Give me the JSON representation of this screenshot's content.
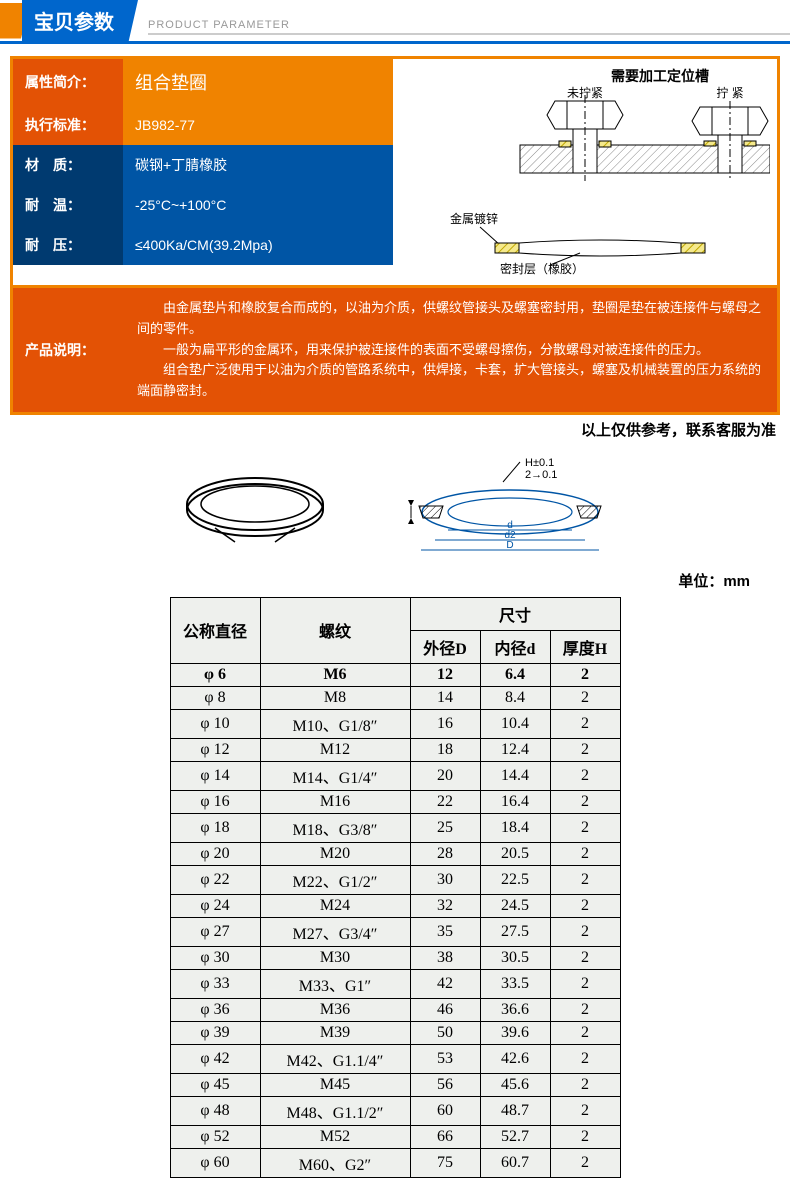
{
  "header": {
    "title": "宝贝参数",
    "subtitle": "PRODUCT PARAMETER"
  },
  "spec": {
    "attr_label": "属性简介：",
    "attr_value": "组合垫圈",
    "std_label": "执行标准：",
    "std_value": "JB982-77",
    "mat_label": "材　质：",
    "mat_value": "碳钢+丁腈橡胶",
    "temp_label": "耐　温：",
    "temp_value": "-25°C~+100°C",
    "press_label": "耐　压：",
    "press_value": "≤400Ka/CM(39.2Mpa)",
    "desc_label": "产品说明：",
    "desc_p1": "由金属垫片和橡胶复合而成的，以油为介质，供螺纹管接头及螺塞密封用，垫圈是垫在被连接件与螺母之间的零件。",
    "desc_p2": "一般为扁平形的金属环，用来保护被连接件的表面不受螺母擦伤，分散螺母对被连接件的压力。",
    "desc_p3": "组合垫广泛使用于以油为介质的管路系统中，供焊接，卡套，扩大管接头，螺塞及机械装置的压力系统的端面静密封。"
  },
  "diagram": {
    "top_title": "需要加工定位槽",
    "left_lbl": "未拧紧",
    "right_lbl": "拧 紧",
    "metal_lbl": "金属镀锌",
    "seal_lbl": "密封层（橡胶）",
    "dim_h": "H±0.1",
    "dim_2": "2→0.1",
    "dim_d": "d",
    "dim_d2": "d2",
    "dim_D": "D"
  },
  "note": "以上仅供参考，联系客服为准",
  "unit": "单位：mm",
  "dim_table": {
    "h_diam": "公称直径",
    "h_thread": "螺纹",
    "h_size": "尺寸",
    "h_D": "外径D",
    "h_d": "内径d",
    "h_H": "厚度H",
    "rows": [
      {
        "diam": "φ 6",
        "thread": "M6",
        "D": "12",
        "d": "6.4",
        "H": "2"
      },
      {
        "diam": "φ 8",
        "thread": "M8",
        "D": "14",
        "d": "8.4",
        "H": "2"
      },
      {
        "diam": "φ 10",
        "thread": "M10、G1/8″",
        "D": "16",
        "d": "10.4",
        "H": "2"
      },
      {
        "diam": "φ 12",
        "thread": "M12",
        "D": "18",
        "d": "12.4",
        "H": "2"
      },
      {
        "diam": "φ 14",
        "thread": "M14、G1/4″",
        "D": "20",
        "d": "14.4",
        "H": "2"
      },
      {
        "diam": "φ 16",
        "thread": "M16",
        "D": "22",
        "d": "16.4",
        "H": "2"
      },
      {
        "diam": "φ 18",
        "thread": "M18、G3/8″",
        "D": "25",
        "d": "18.4",
        "H": "2"
      },
      {
        "diam": "φ 20",
        "thread": "M20",
        "D": "28",
        "d": "20.5",
        "H": "2"
      },
      {
        "diam": "φ 22",
        "thread": "M22、G1/2″",
        "D": "30",
        "d": "22.5",
        "H": "2"
      },
      {
        "diam": "φ 24",
        "thread": "M24",
        "D": "32",
        "d": "24.5",
        "H": "2"
      },
      {
        "diam": "φ 27",
        "thread": "M27、G3/4″",
        "D": "35",
        "d": "27.5",
        "H": "2"
      },
      {
        "diam": "φ 30",
        "thread": "M30",
        "D": "38",
        "d": "30.5",
        "H": "2"
      },
      {
        "diam": "φ 33",
        "thread": "M33、G1″",
        "D": "42",
        "d": "33.5",
        "H": "2"
      },
      {
        "diam": "φ 36",
        "thread": "M36",
        "D": "46",
        "d": "36.6",
        "H": "2"
      },
      {
        "diam": "φ 39",
        "thread": "M39",
        "D": "50",
        "d": "39.6",
        "H": "2"
      },
      {
        "diam": "φ 42",
        "thread": "M42、G1.1/4″",
        "D": "53",
        "d": "42.6",
        "H": "2"
      },
      {
        "diam": "φ 45",
        "thread": "M45",
        "D": "56",
        "d": "45.6",
        "H": "2"
      },
      {
        "diam": "φ 48",
        "thread": "M48、G1.1/2″",
        "D": "60",
        "d": "48.7",
        "H": "2"
      },
      {
        "diam": "φ 52",
        "thread": "M52",
        "D": "66",
        "d": "52.7",
        "H": "2"
      },
      {
        "diam": "φ 60",
        "thread": "M60、G2″",
        "D": "75",
        "d": "60.7",
        "H": "2"
      }
    ]
  },
  "colors": {
    "blue": "#0066cc",
    "orange": "#f08300",
    "dark_orange": "#e35205",
    "dark_blue": "#003a70",
    "mid_blue": "#0055a5",
    "hatch": "#d4b800",
    "table_bg": "#eef0ed"
  }
}
